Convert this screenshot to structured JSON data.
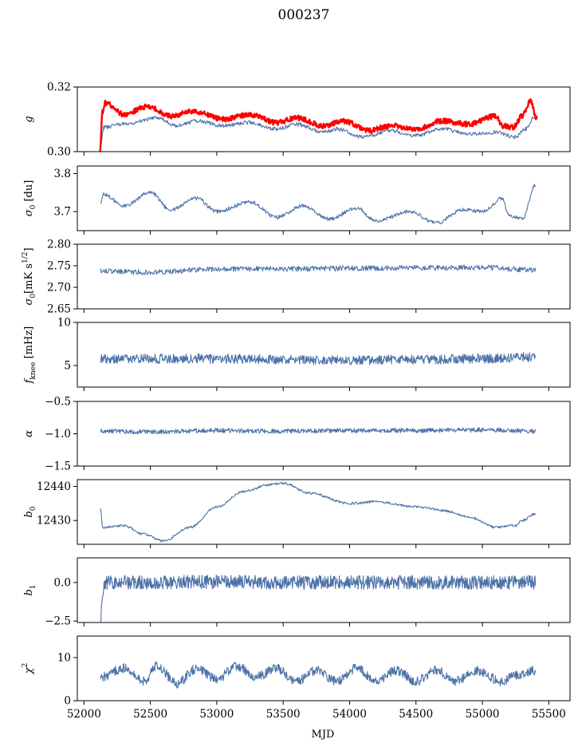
{
  "title": "000237",
  "colors": {
    "series": "#4c72a8",
    "accent": "#ff0000"
  },
  "xaxis": {
    "label": "MJD",
    "lim": [
      51950,
      55660
    ],
    "ticks": [
      52000,
      52500,
      53000,
      53500,
      54000,
      54500,
      55000,
      55500
    ],
    "tick_labels": [
      "52000",
      "52500",
      "53000",
      "53500",
      "54000",
      "54500",
      "55000",
      "55500"
    ]
  },
  "chart_data": [
    {
      "type": "line",
      "ylabel": "g",
      "ylabel_html": "<tspan font-style='italic'>g</tspan>",
      "ylim": [
        0.3,
        0.32
      ],
      "yticks": [
        0.3,
        0.32
      ],
      "ytick_labels": [
        "0.30",
        "0.32"
      ],
      "series": [
        {
          "color": "#4c72a8",
          "width": 1.1,
          "start": 52125,
          "end": 55400,
          "n": 700,
          "points": [
            [
              52125,
              0.3025
            ],
            [
              52150,
              0.3075
            ],
            [
              52300,
              0.3085
            ],
            [
              52550,
              0.3105
            ],
            [
              52700,
              0.308
            ],
            [
              52850,
              0.3095
            ],
            [
              53050,
              0.308
            ],
            [
              53250,
              0.309
            ],
            [
              53450,
              0.307
            ],
            [
              53600,
              0.3085
            ],
            [
              53800,
              0.306
            ],
            [
              53900,
              0.307
            ],
            [
              54100,
              0.3045
            ],
            [
              54300,
              0.3065
            ],
            [
              54500,
              0.305
            ],
            [
              54700,
              0.307
            ],
            [
              54900,
              0.3055
            ],
            [
              55100,
              0.306
            ],
            [
              55250,
              0.3045
            ],
            [
              55320,
              0.307
            ],
            [
              55400,
              0.311
            ]
          ],
          "noise": 0.0006
        },
        {
          "color": "#ff0000",
          "width": 2.4,
          "start": 52120,
          "end": 55410,
          "n": 900,
          "points": [
            [
              52120,
              0.3
            ],
            [
              52140,
              0.3125
            ],
            [
              52160,
              0.315
            ],
            [
              52300,
              0.3115
            ],
            [
              52480,
              0.314
            ],
            [
              52650,
              0.311
            ],
            [
              52820,
              0.3125
            ],
            [
              53050,
              0.31
            ],
            [
              53250,
              0.3115
            ],
            [
              53450,
              0.309
            ],
            [
              53600,
              0.3105
            ],
            [
              53800,
              0.308
            ],
            [
              53950,
              0.3095
            ],
            [
              54150,
              0.3065
            ],
            [
              54300,
              0.308
            ],
            [
              54500,
              0.307
            ],
            [
              54700,
              0.3095
            ],
            [
              54900,
              0.3085
            ],
            [
              55100,
              0.311
            ],
            [
              55150,
              0.308
            ],
            [
              55230,
              0.3075
            ],
            [
              55300,
              0.311
            ],
            [
              55360,
              0.3155
            ],
            [
              55410,
              0.3105
            ]
          ],
          "noise": 0.0008
        }
      ]
    },
    {
      "type": "line",
      "ylabel": "σ0 [du]",
      "ylabel_html": "<tspan font-style='italic'>σ</tspan><tspan dy='4' font-size='9'>0</tspan><tspan dy='-4'> [du]</tspan>",
      "ylim": [
        3.65,
        3.82
      ],
      "yticks": [
        3.7,
        3.8
      ],
      "ytick_labels": [
        "3.7",
        "3.8"
      ],
      "series": [
        {
          "color": "#4c72a8",
          "width": 1.1,
          "start": 52125,
          "end": 55400,
          "n": 700,
          "points": [
            [
              52125,
              3.72
            ],
            [
              52150,
              3.745
            ],
            [
              52300,
              3.715
            ],
            [
              52500,
              3.75
            ],
            [
              52650,
              3.705
            ],
            [
              52850,
              3.735
            ],
            [
              53000,
              3.7
            ],
            [
              53250,
              3.725
            ],
            [
              53450,
              3.685
            ],
            [
              53650,
              3.715
            ],
            [
              53850,
              3.68
            ],
            [
              54050,
              3.71
            ],
            [
              54200,
              3.675
            ],
            [
              54450,
              3.7
            ],
            [
              54650,
              3.67
            ],
            [
              54850,
              3.705
            ],
            [
              55000,
              3.7
            ],
            [
              55150,
              3.735
            ],
            [
              55200,
              3.69
            ],
            [
              55300,
              3.68
            ],
            [
              55400,
              3.77
            ]
          ],
          "noise": 0.005
        }
      ]
    },
    {
      "type": "line",
      "ylabel": "σ0[mK s1/2]",
      "ylabel_html": "<tspan font-style='italic'>σ</tspan><tspan dy='4' font-size='9'>0</tspan><tspan dy='-4'>[mK s</tspan><tspan dy='-6' font-size='9'>1/2</tspan><tspan dy='6'>]</tspan>",
      "ylim": [
        2.65,
        2.8
      ],
      "yticks": [
        2.65,
        2.7,
        2.75,
        2.8
      ],
      "ytick_labels": [
        "2.65",
        "2.70",
        "2.75",
        "2.80"
      ],
      "series": [
        {
          "color": "#4c72a8",
          "width": 1.1,
          "start": 52125,
          "end": 55400,
          "n": 700,
          "points": [
            [
              52125,
              2.738
            ],
            [
              52500,
              2.735
            ],
            [
              53000,
              2.742
            ],
            [
              53500,
              2.743
            ],
            [
              54000,
              2.744
            ],
            [
              54500,
              2.745
            ],
            [
              55000,
              2.746
            ],
            [
              55400,
              2.74
            ]
          ],
          "noise": 0.006
        }
      ]
    },
    {
      "type": "line",
      "ylabel": "fknee [mHz]",
      "ylabel_html": "<tspan font-style='italic'>f</tspan><tspan dy='4' font-size='9'>knee</tspan><tspan dy='-4'> [mHz]</tspan>",
      "ylim": [
        2.5,
        10
      ],
      "yticks": [
        5,
        10
      ],
      "ytick_labels": [
        "5",
        "10"
      ],
      "series": [
        {
          "color": "#4c72a8",
          "width": 1.1,
          "start": 52125,
          "end": 55400,
          "n": 900,
          "points": [
            [
              52125,
              5.8
            ],
            [
              52500,
              5.8
            ],
            [
              53000,
              5.8
            ],
            [
              53500,
              5.7
            ],
            [
              54000,
              5.6
            ],
            [
              54500,
              5.7
            ],
            [
              55000,
              5.8
            ],
            [
              55400,
              6.0
            ]
          ],
          "noise": 0.55
        }
      ]
    },
    {
      "type": "line",
      "ylabel": "α",
      "ylabel_html": "<tspan font-style='italic'>α</tspan>",
      "ylim": [
        -1.5,
        -0.5
      ],
      "yticks": [
        -1.5,
        -1.0,
        -0.5
      ],
      "ytick_labels": [
        "−1.5",
        "−1.0",
        "−0.5"
      ],
      "series": [
        {
          "color": "#4c72a8",
          "width": 1.1,
          "start": 52125,
          "end": 55400,
          "n": 900,
          "points": [
            [
              52125,
              -0.96
            ],
            [
              52500,
              -0.97
            ],
            [
              53000,
              -0.95
            ],
            [
              53500,
              -0.96
            ],
            [
              54000,
              -0.95
            ],
            [
              54500,
              -0.95
            ],
            [
              55000,
              -0.94
            ],
            [
              55400,
              -0.96
            ]
          ],
          "noise": 0.035
        }
      ]
    },
    {
      "type": "line",
      "ylabel": "b0",
      "ylabel_html": "<tspan font-style='italic'>b</tspan><tspan dy='4' font-size='9'>0</tspan>",
      "ylim": [
        12423,
        12442
      ],
      "yticks": [
        12430,
        12440
      ],
      "ytick_labels": [
        "12430",
        "12440"
      ],
      "series": [
        {
          "color": "#4c72a8",
          "width": 1.1,
          "start": 52125,
          "end": 55400,
          "n": 700,
          "points": [
            [
              52125,
              12433.5
            ],
            [
              52140,
              12428
            ],
            [
              52300,
              12428.5
            ],
            [
              52450,
              12426
            ],
            [
              52600,
              12424
            ],
            [
              52800,
              12428
            ],
            [
              53000,
              12434
            ],
            [
              53200,
              12438.5
            ],
            [
              53400,
              12440.5
            ],
            [
              53500,
              12441
            ],
            [
              53700,
              12438
            ],
            [
              54000,
              12435
            ],
            [
              54200,
              12435.5
            ],
            [
              54500,
              12434
            ],
            [
              54700,
              12433
            ],
            [
              54900,
              12431
            ],
            [
              55100,
              12428
            ],
            [
              55250,
              12428.5
            ],
            [
              55300,
              12430
            ],
            [
              55400,
              12432
            ]
          ],
          "noise": 0.35
        }
      ]
    },
    {
      "type": "line",
      "ylabel": "b1",
      "ylabel_html": "<tspan font-style='italic'>b</tspan><tspan dy='4' font-size='9'>1</tspan>",
      "ylim": [
        -2.6,
        1.6
      ],
      "yticks": [
        -2.5,
        0.0
      ],
      "ytick_labels": [
        "−2.5",
        "0.0"
      ],
      "series": [
        {
          "color": "#4c72a8",
          "width": 1.1,
          "start": 52125,
          "end": 55400,
          "n": 1000,
          "points": [
            [
              52125,
              -2.5
            ],
            [
              52140,
              -0.5
            ],
            [
              52170,
              0.0
            ],
            [
              52500,
              0.0
            ],
            [
              53000,
              0.05
            ],
            [
              53500,
              0.0
            ],
            [
              54000,
              0.0
            ],
            [
              54500,
              0.0
            ],
            [
              55000,
              0.0
            ],
            [
              55400,
              0.0
            ]
          ],
          "noise": 0.45
        }
      ]
    },
    {
      "type": "line",
      "ylabel": "χ2",
      "ylabel_html": "<tspan font-style='italic'>χ</tspan><tspan dy='-6' font-size='9'>2</tspan>",
      "ylim": [
        0,
        15
      ],
      "yticks": [
        0,
        10
      ],
      "ytick_labels": [
        "0",
        "10"
      ],
      "series": [
        {
          "color": "#4c72a8",
          "width": 1.1,
          "start": 52125,
          "end": 55400,
          "n": 900,
          "points": [
            [
              52125,
              5.5
            ],
            [
              52300,
              7.5
            ],
            [
              52450,
              4.5
            ],
            [
              52550,
              8.0
            ],
            [
              52700,
              4.0
            ],
            [
              52850,
              7.5
            ],
            [
              53000,
              5.0
            ],
            [
              53150,
              8.0
            ],
            [
              53300,
              5.5
            ],
            [
              53450,
              7.5
            ],
            [
              53600,
              4.5
            ],
            [
              53750,
              7.0
            ],
            [
              53900,
              4.5
            ],
            [
              54050,
              7.5
            ],
            [
              54200,
              4.5
            ],
            [
              54350,
              7.0
            ],
            [
              54500,
              4.5
            ],
            [
              54650,
              7.0
            ],
            [
              54800,
              4.5
            ],
            [
              54950,
              7.0
            ],
            [
              55150,
              4.5
            ],
            [
              55250,
              6.0
            ],
            [
              55400,
              7.0
            ]
          ],
          "noise": 1.1
        }
      ]
    }
  ]
}
